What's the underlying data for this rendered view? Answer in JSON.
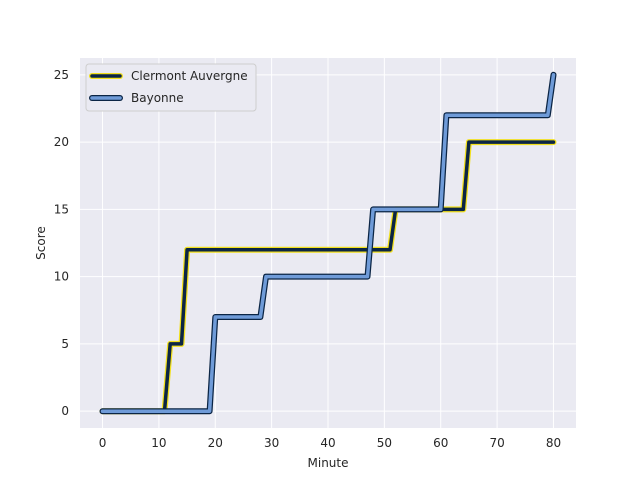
{
  "chart_data": {
    "type": "line",
    "title": "",
    "xlabel": "Minute",
    "ylabel": "Score",
    "xlim": [
      -4,
      84
    ],
    "ylim": [
      -1.25,
      26.25
    ],
    "xticks": [
      0,
      10,
      20,
      30,
      40,
      50,
      60,
      70,
      80
    ],
    "yticks": [
      0,
      5,
      10,
      15,
      20,
      25
    ],
    "grid": true,
    "legend_position": "top-left",
    "series": [
      {
        "name": "Clermont Auvergne",
        "color": "#0b2545",
        "edge_color": "#f2e01c",
        "points": [
          [
            0,
            0
          ],
          [
            11,
            0
          ],
          [
            12,
            5
          ],
          [
            14,
            5
          ],
          [
            15,
            12
          ],
          [
            51,
            12
          ],
          [
            52,
            15
          ],
          [
            64,
            15
          ],
          [
            65,
            20
          ],
          [
            80,
            20
          ]
        ]
      },
      {
        "name": "Bayonne",
        "color": "#6f9bd8",
        "edge_color": "#0b2545",
        "points": [
          [
            0,
            0
          ],
          [
            19,
            0
          ],
          [
            20,
            7
          ],
          [
            28,
            7
          ],
          [
            29,
            10
          ],
          [
            47,
            10
          ],
          [
            48,
            15
          ],
          [
            60,
            15
          ],
          [
            61,
            22
          ],
          [
            79,
            22
          ],
          [
            80,
            25
          ]
        ]
      }
    ]
  }
}
